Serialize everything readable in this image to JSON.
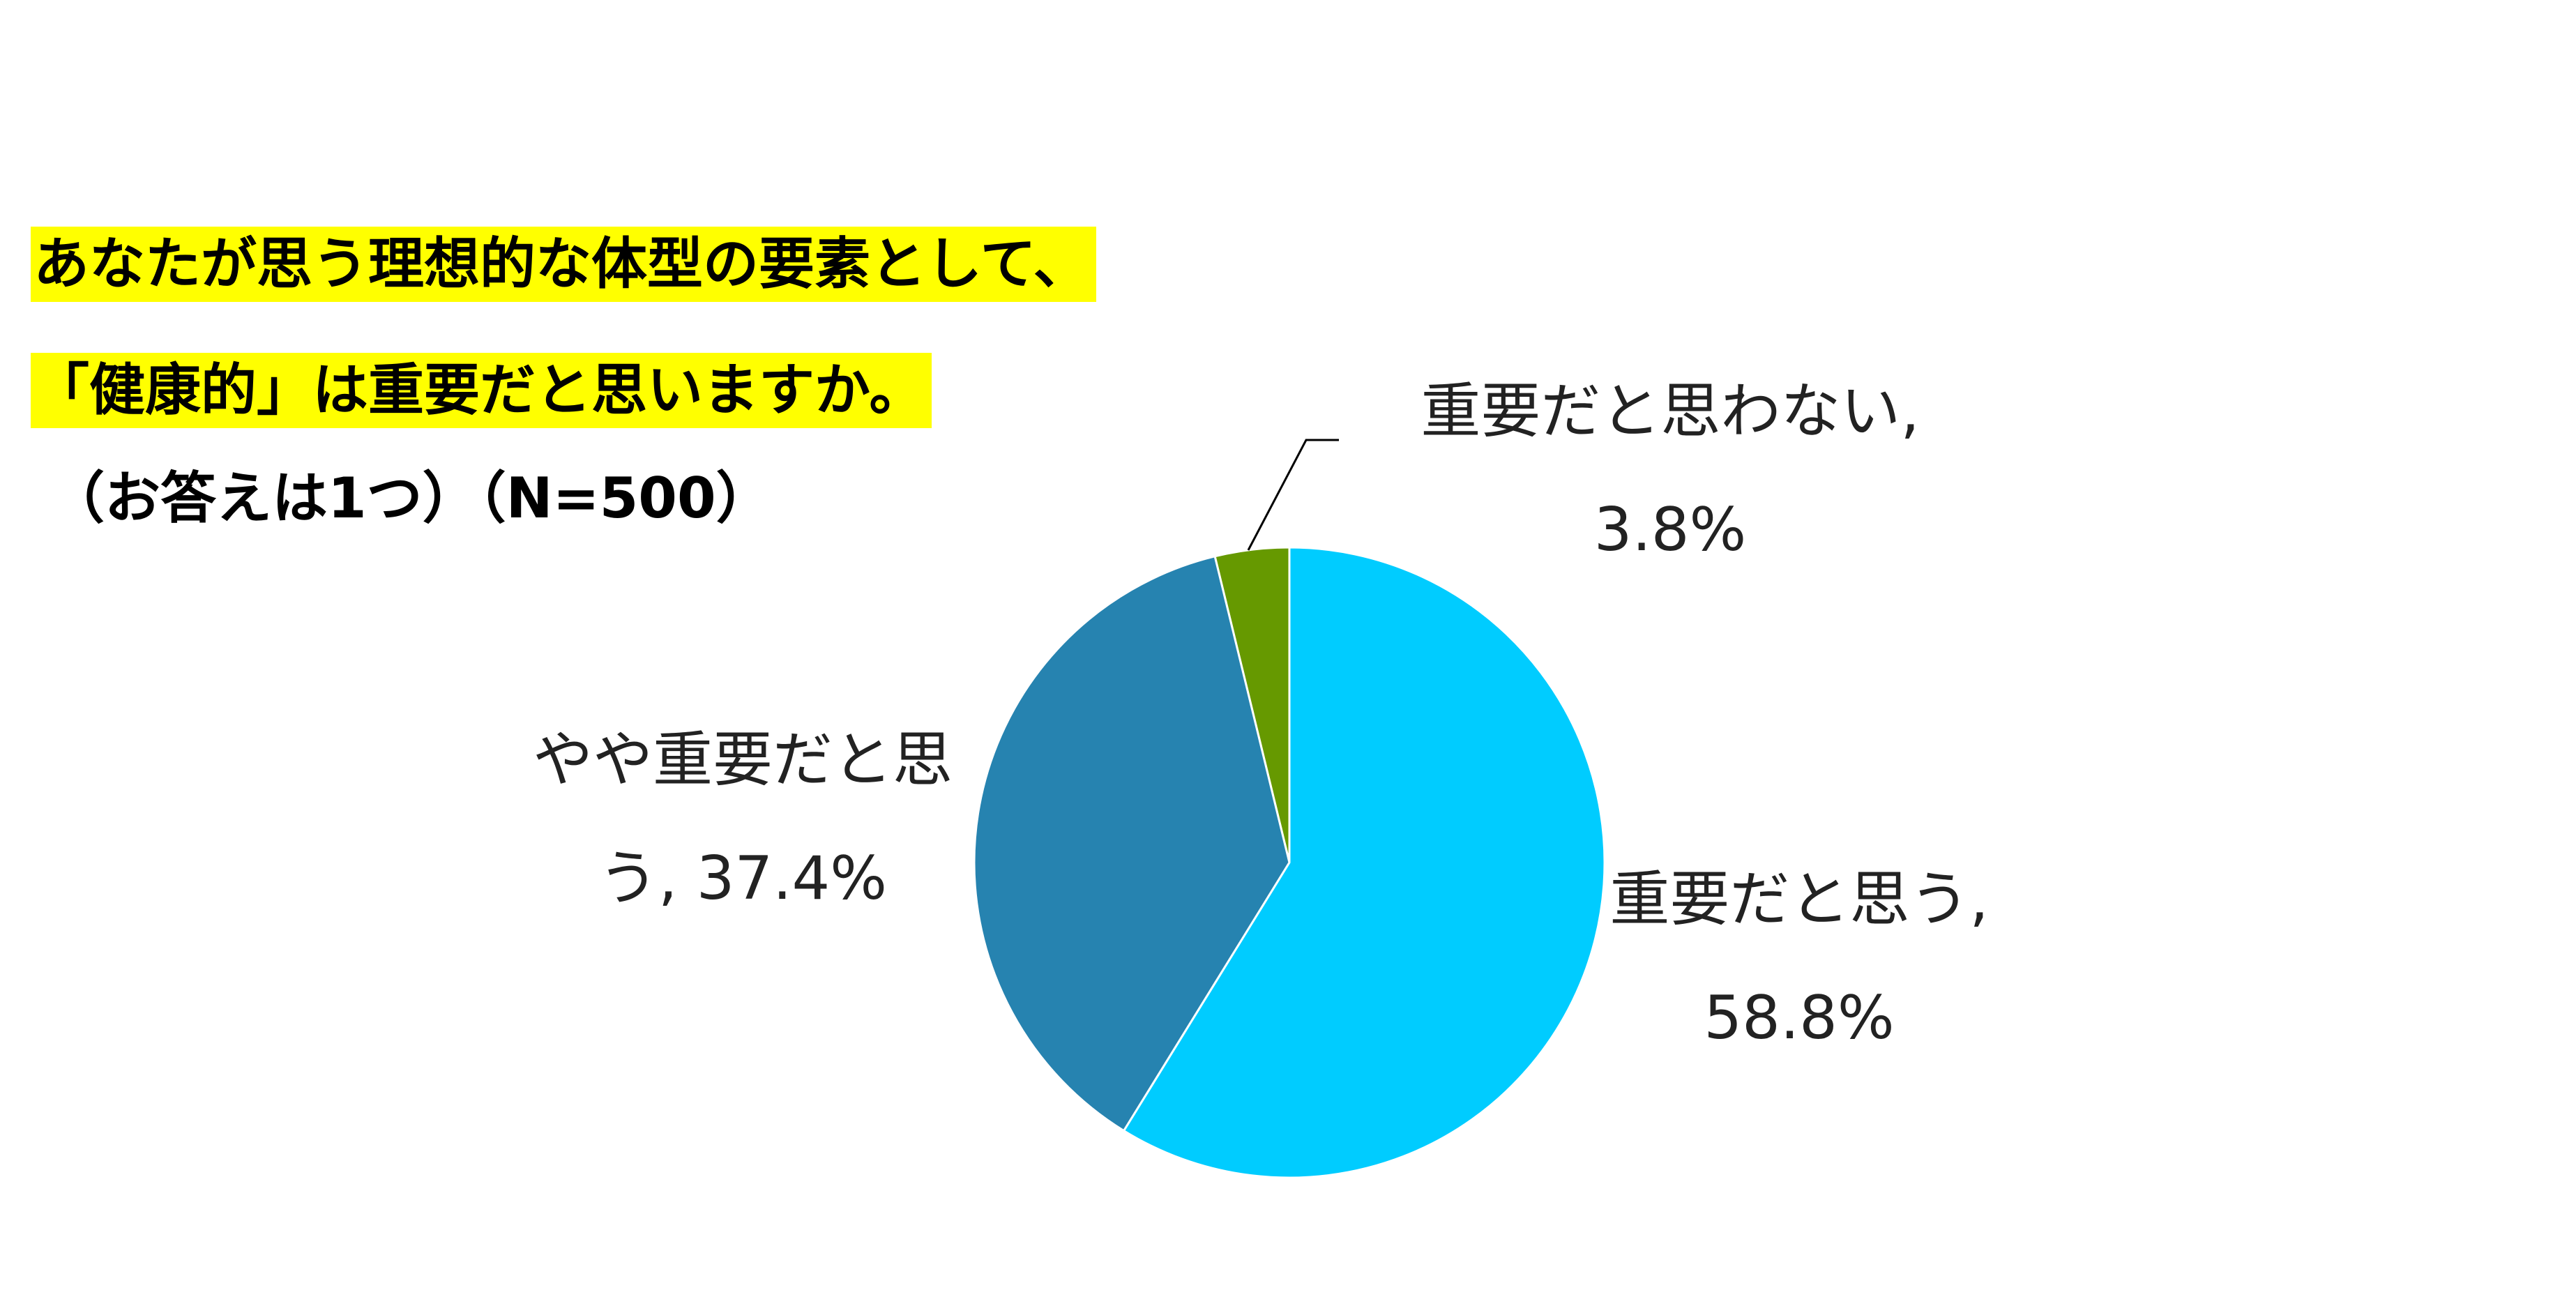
{
  "chart_data": {
    "type": "pie",
    "title": [
      "あなたが思う理想的な体型の要素として、",
      "「健康的」は重要だと思いますか。"
    ],
    "subtitle": "（お答えは1つ）（N=500）",
    "categories": [
      "重要だと思う,",
      "やや重要だと思う,",
      "重要だと思わない,"
    ],
    "values": [
      58.8,
      37.4,
      3.8
    ],
    "value_labels": [
      "58.8%",
      "37.4%",
      "3.8%"
    ],
    "colors": [
      "#00ccff",
      "#2683b0",
      "#669900"
    ]
  }
}
